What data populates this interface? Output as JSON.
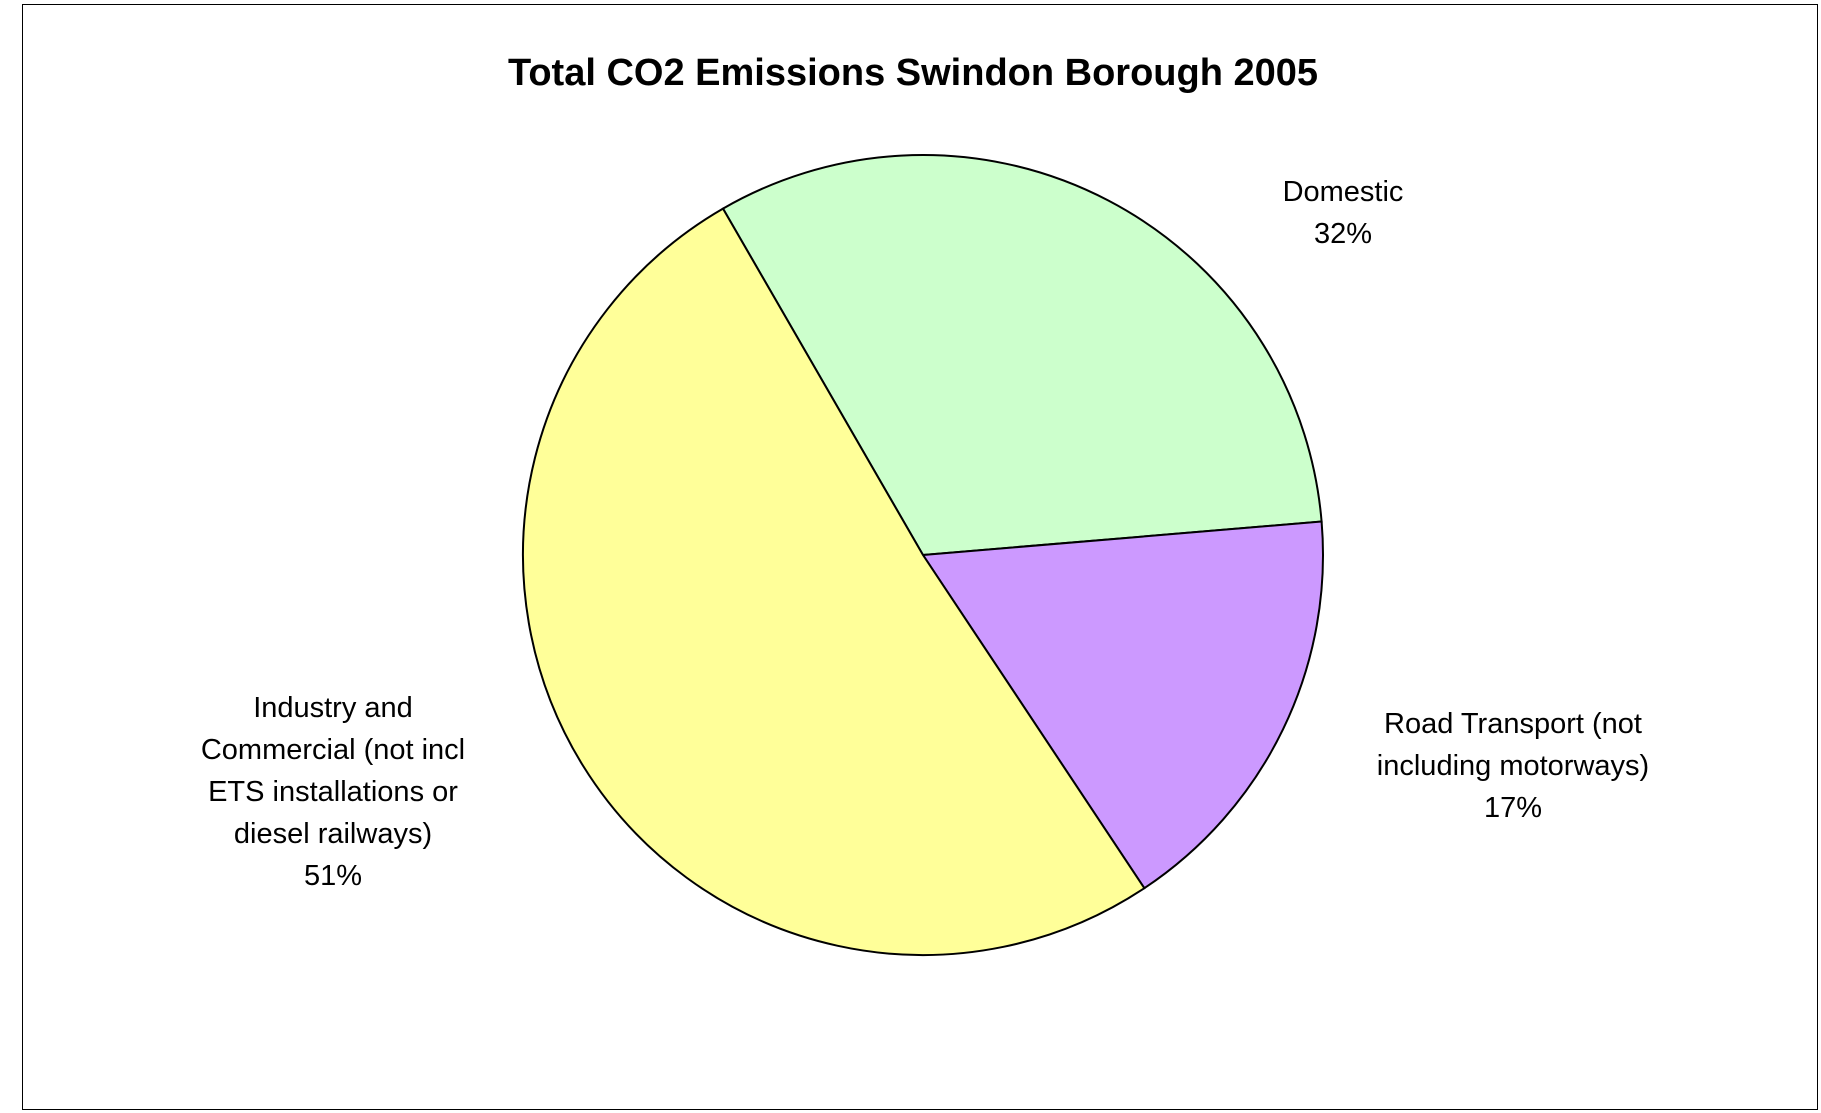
{
  "chart_data": {
    "type": "pie",
    "title": "Total CO2 Emissions Swindon Borough 2005",
    "slices": [
      {
        "label": [
          "Domestic"
        ],
        "value": 32,
        "value_label": "32%",
        "color": "#CCFFCC"
      },
      {
        "label": [
          "Road Transport (not",
          "including motorways)"
        ],
        "value": 17,
        "value_label": "17%",
        "color": "#CC99FF"
      },
      {
        "label": [
          "Industry and",
          "Commercial (not incl",
          "ETS installations or",
          "diesel railways)"
        ],
        "value": 51,
        "value_label": "51%",
        "color": "#FFFF99"
      }
    ],
    "legend": "none"
  }
}
